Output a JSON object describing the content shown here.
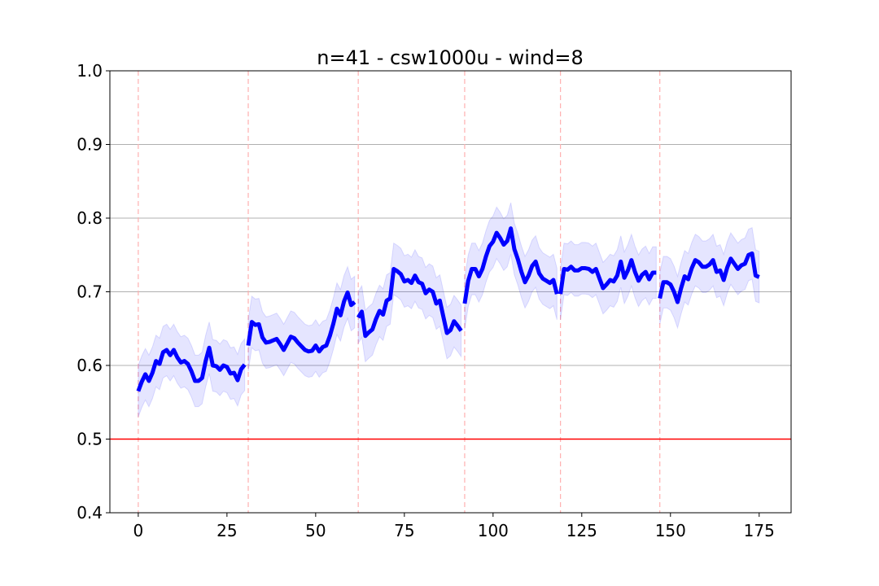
{
  "chart_data": {
    "type": "line",
    "title": "n=41 - csw1000u - wind=8",
    "xlabel": "",
    "ylabel": "",
    "xlim": [
      -8,
      184
    ],
    "ylim": [
      0.4,
      1.0
    ],
    "x_ticks": [
      0,
      25,
      50,
      75,
      100,
      125,
      150,
      175
    ],
    "x_tick_labels": [
      "0",
      "25",
      "50",
      "75",
      "100",
      "125",
      "150",
      "175"
    ],
    "y_ticks": [
      0.4,
      0.5,
      0.6,
      0.7,
      0.8,
      0.9,
      1.0
    ],
    "y_tick_labels": [
      "0.4",
      "0.5",
      "0.6",
      "0.7",
      "0.8",
      "0.9",
      "1.0"
    ],
    "grid": "horizontal",
    "reference_line": {
      "y": 0.5,
      "color": "#ff0000"
    },
    "segment_boundaries": [
      0,
      31,
      62,
      92,
      119,
      147
    ],
    "colors": {
      "line": "#0000ff",
      "band": "#0000ff",
      "boundary": "#ffb0b0",
      "reference": "#ff0000",
      "grid": "#b0b0b0"
    },
    "band_halfwidth": 0.035,
    "segments": [
      {
        "x": [
          0,
          1,
          2,
          3,
          4,
          5,
          6,
          7,
          8,
          9,
          10,
          11,
          12,
          13,
          14,
          15,
          16,
          17,
          18,
          19,
          20,
          21,
          22,
          23,
          24,
          25,
          26,
          27,
          28,
          29,
          30
        ],
        "y": [
          0.565,
          0.578,
          0.588,
          0.579,
          0.59,
          0.606,
          0.602,
          0.618,
          0.621,
          0.614,
          0.621,
          0.611,
          0.604,
          0.606,
          0.602,
          0.592,
          0.579,
          0.579,
          0.583,
          0.606,
          0.624,
          0.6,
          0.599,
          0.594,
          0.6,
          0.598,
          0.589,
          0.59,
          0.58,
          0.595,
          0.601
        ]
      },
      {
        "x": [
          31,
          32,
          33,
          34,
          35,
          36,
          37,
          38,
          39,
          40,
          41,
          42,
          43,
          44,
          45,
          46,
          47,
          48,
          49,
          50,
          51,
          52,
          53,
          54,
          55,
          56,
          57,
          58,
          59,
          60,
          61
        ],
        "y": [
          0.627,
          0.659,
          0.655,
          0.656,
          0.638,
          0.631,
          0.632,
          0.634,
          0.636,
          0.629,
          0.621,
          0.63,
          0.639,
          0.637,
          0.631,
          0.626,
          0.621,
          0.619,
          0.62,
          0.627,
          0.619,
          0.625,
          0.627,
          0.64,
          0.657,
          0.677,
          0.668,
          0.687,
          0.699,
          0.682,
          0.686
        ]
      },
      {
        "x": [
          62,
          63,
          64,
          65,
          66,
          67,
          68,
          69,
          70,
          71,
          72,
          73,
          74,
          75,
          76,
          77,
          78,
          79,
          80,
          81,
          82,
          83,
          84,
          85,
          86,
          87,
          88,
          89,
          90,
          91
        ],
        "y": [
          0.665,
          0.673,
          0.64,
          0.645,
          0.649,
          0.663,
          0.674,
          0.669,
          0.688,
          0.691,
          0.731,
          0.728,
          0.724,
          0.714,
          0.716,
          0.712,
          0.722,
          0.713,
          0.711,
          0.698,
          0.703,
          0.7,
          0.684,
          0.688,
          0.666,
          0.644,
          0.648,
          0.66,
          0.654,
          0.647
        ]
      },
      {
        "x": [
          92,
          93,
          94,
          95,
          96,
          97,
          98,
          99,
          100,
          101,
          102,
          103,
          104,
          105,
          106,
          107,
          108,
          109,
          110,
          111,
          112,
          113,
          114,
          115,
          116,
          117,
          118
        ],
        "y": [
          0.684,
          0.715,
          0.731,
          0.731,
          0.721,
          0.731,
          0.748,
          0.762,
          0.768,
          0.78,
          0.773,
          0.764,
          0.769,
          0.786,
          0.758,
          0.744,
          0.727,
          0.713,
          0.722,
          0.735,
          0.741,
          0.725,
          0.718,
          0.715,
          0.712,
          0.716,
          0.697
        ]
      },
      {
        "x": [
          119,
          120,
          121,
          122,
          123,
          124,
          125,
          126,
          127,
          128,
          129,
          130,
          131,
          132,
          133,
          134,
          135,
          136,
          137,
          138,
          139,
          140,
          141,
          142,
          143,
          144,
          145,
          146
        ],
        "y": [
          0.697,
          0.731,
          0.73,
          0.734,
          0.729,
          0.729,
          0.732,
          0.732,
          0.731,
          0.727,
          0.731,
          0.718,
          0.705,
          0.71,
          0.716,
          0.714,
          0.722,
          0.741,
          0.719,
          0.729,
          0.743,
          0.727,
          0.715,
          0.723,
          0.727,
          0.717,
          0.726,
          0.726
        ]
      },
      {
        "x": [
          147,
          148,
          149,
          150,
          151,
          152,
          153,
          154,
          155,
          156,
          157,
          158,
          159,
          160,
          161,
          162,
          163,
          164,
          165,
          166,
          167,
          168,
          169,
          170,
          171,
          172,
          173,
          174,
          175
        ],
        "y": [
          0.691,
          0.713,
          0.713,
          0.71,
          0.7,
          0.686,
          0.705,
          0.721,
          0.717,
          0.732,
          0.743,
          0.74,
          0.734,
          0.734,
          0.737,
          0.743,
          0.727,
          0.729,
          0.716,
          0.733,
          0.745,
          0.738,
          0.731,
          0.736,
          0.738,
          0.75,
          0.752,
          0.722,
          0.72
        ]
      }
    ]
  }
}
